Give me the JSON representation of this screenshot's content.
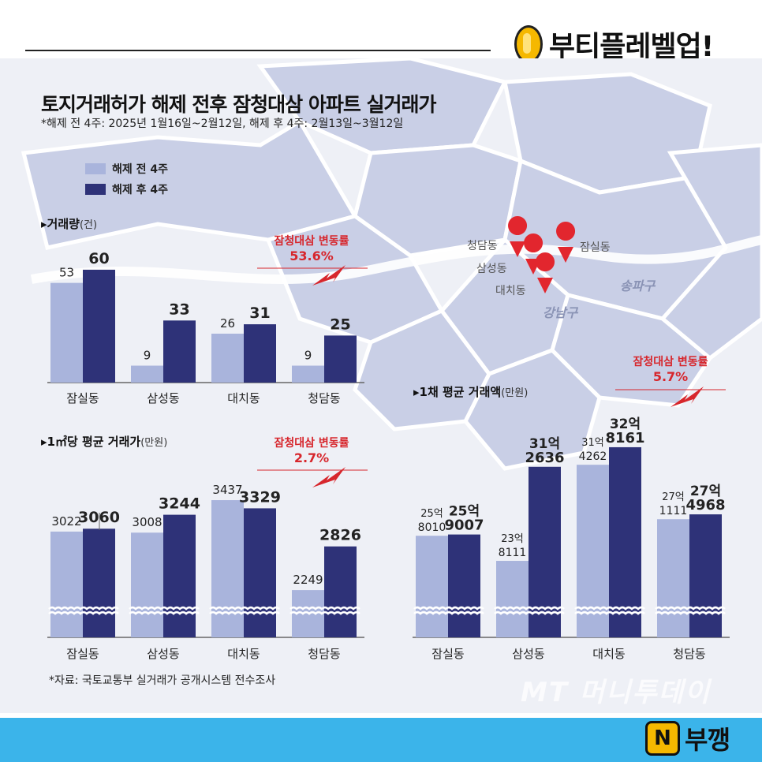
{
  "brand": {
    "name": "부티플레벨업!"
  },
  "footer_brand": {
    "icon_letter": "N",
    "name": "부깽"
  },
  "watermark": "MT 머니투데이",
  "colors": {
    "before": "#a9b4dc",
    "after": "#2e3278",
    "accent": "#d7262c"
  },
  "chart_data": {
    "type": "bar",
    "title": "토지거래허가 해제 전후 잠청대삼 아파트 실거래가",
    "subtitle": "*해제 전 4주: 2025년 1월16일~2월12일, 해제 후 4주: 2월13일~3월12일",
    "source": "*자료: 국토교통부 실거래가 공개시스템 전수조사",
    "legend": [
      "해제 전 4주",
      "해제 후 4주"
    ],
    "legend_position": "top-left",
    "categories": [
      "잠실동",
      "삼성동",
      "대치동",
      "청담동"
    ],
    "map_labels": {
      "dongs": [
        "청담동",
        "잠실동",
        "삼성동",
        "대치동"
      ],
      "gus": [
        "송파구",
        "강남구"
      ]
    },
    "panels": [
      {
        "id": "volume",
        "label": "▸거래량",
        "unit": "(건)",
        "change_label": "잠청대삼 변동률",
        "change_value": "53.6%",
        "ylim": [
          0,
          65
        ],
        "series": [
          {
            "name": "해제 전 4주",
            "values": [
              53,
              9,
              26,
              9
            ],
            "labels": [
              "53",
              "9",
              "26",
              "9"
            ]
          },
          {
            "name": "해제 후 4주",
            "values": [
              60,
              33,
              31,
              25
            ],
            "labels": [
              "60",
              "33",
              "31",
              "25"
            ]
          }
        ]
      },
      {
        "id": "per_sqm",
        "label": "▸1㎡당 평균 거래가",
        "unit": "(만원)",
        "change_label": "잠청대삼 변동률",
        "change_value": "2.7%",
        "ylim": [
          0,
          3500
        ],
        "axis_break": true,
        "series": [
          {
            "name": "해제 전 4주",
            "values": [
              3022,
              3008,
              3437,
              2249
            ],
            "labels": [
              "3022",
              "3008",
              "3437",
              "2249"
            ]
          },
          {
            "name": "해제 후 4주",
            "values": [
              3060,
              3244,
              3329,
              2826
            ],
            "labels": [
              "3060",
              "3244",
              "3329",
              "2826"
            ]
          }
        ]
      },
      {
        "id": "per_unit",
        "label": "▸1채 평균 거래액",
        "unit": "(만원)",
        "change_label": "잠청대삼 변동률",
        "change_value": "5.7%",
        "ylim": [
          0,
          340000
        ],
        "axis_break": true,
        "series": [
          {
            "name": "해제 전 4주",
            "values": [
              258010,
              238111,
              314262,
              271111
            ],
            "labels_top": [
              "25억",
              "23억",
              "31억",
              "27억"
            ],
            "labels_bottom": [
              "8010",
              "8111",
              "4262",
              "1111"
            ]
          },
          {
            "name": "해제 후 4주",
            "values": [
              259007,
              312636,
              328161,
              274968
            ],
            "labels_top": [
              "25억",
              "31억",
              "32억",
              "27억"
            ],
            "labels_bottom": [
              "9007",
              "2636",
              "8161",
              "4968"
            ]
          }
        ]
      }
    ]
  }
}
